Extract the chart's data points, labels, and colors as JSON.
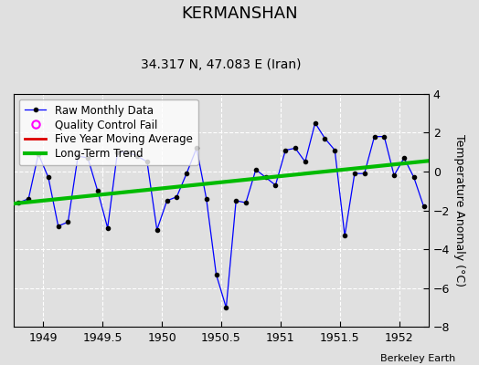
{
  "title": "KERMANSHAN",
  "subtitle": "34.317 N, 47.083 E (Iran)",
  "ylabel": "Temperature Anomaly (°C)",
  "watermark": "Berkeley Earth",
  "xlim": [
    1948.75,
    1952.25
  ],
  "ylim": [
    -8,
    4
  ],
  "yticks": [
    -8,
    -6,
    -4,
    -2,
    0,
    2,
    4
  ],
  "xticks": [
    1949,
    1949.5,
    1950,
    1950.5,
    1951,
    1951.5,
    1952
  ],
  "xticklabels": [
    "1949",
    "1949.5",
    "1950",
    "1950.5",
    "1951",
    "1951.5",
    "1952"
  ],
  "bg_color": "#e0e0e0",
  "plot_bg_color": "#e0e0e0",
  "raw_x": [
    1948.792,
    1948.875,
    1948.958,
    1949.042,
    1949.125,
    1949.208,
    1949.292,
    1949.375,
    1949.458,
    1949.542,
    1949.625,
    1949.708,
    1949.792,
    1949.875,
    1949.958,
    1950.042,
    1950.125,
    1950.208,
    1950.292,
    1950.375,
    1950.458,
    1950.542,
    1950.625,
    1950.708,
    1950.792,
    1950.875,
    1950.958,
    1951.042,
    1951.125,
    1951.208,
    1951.292,
    1951.375,
    1951.458,
    1951.542,
    1951.625,
    1951.708,
    1951.792,
    1951.875,
    1951.958,
    1952.042,
    1952.125,
    1952.208
  ],
  "raw_y": [
    -1.6,
    -1.4,
    0.9,
    -0.3,
    -2.8,
    -2.6,
    0.8,
    0.7,
    -1.0,
    -2.9,
    1.0,
    1.0,
    0.8,
    0.5,
    -3.0,
    -1.5,
    -1.3,
    -0.1,
    1.2,
    -1.4,
    -5.3,
    -7.0,
    -1.5,
    -1.6,
    0.1,
    -0.3,
    -0.7,
    1.1,
    1.2,
    0.5,
    2.5,
    1.7,
    1.1,
    -3.3,
    -0.1,
    -0.1,
    1.8,
    1.8,
    -0.2,
    0.7,
    -0.3,
    -1.8
  ],
  "trend_x": [
    1948.75,
    1952.25
  ],
  "trend_y": [
    -1.65,
    0.55
  ],
  "raw_color": "#0000ff",
  "raw_marker_color": "#000000",
  "trend_color": "#00bb00",
  "moving_avg_color": "#dd0000",
  "qc_color": "#ff00ff",
  "title_fontsize": 13,
  "subtitle_fontsize": 10,
  "legend_fontsize": 8.5,
  "tick_fontsize": 9,
  "ylabel_fontsize": 9
}
